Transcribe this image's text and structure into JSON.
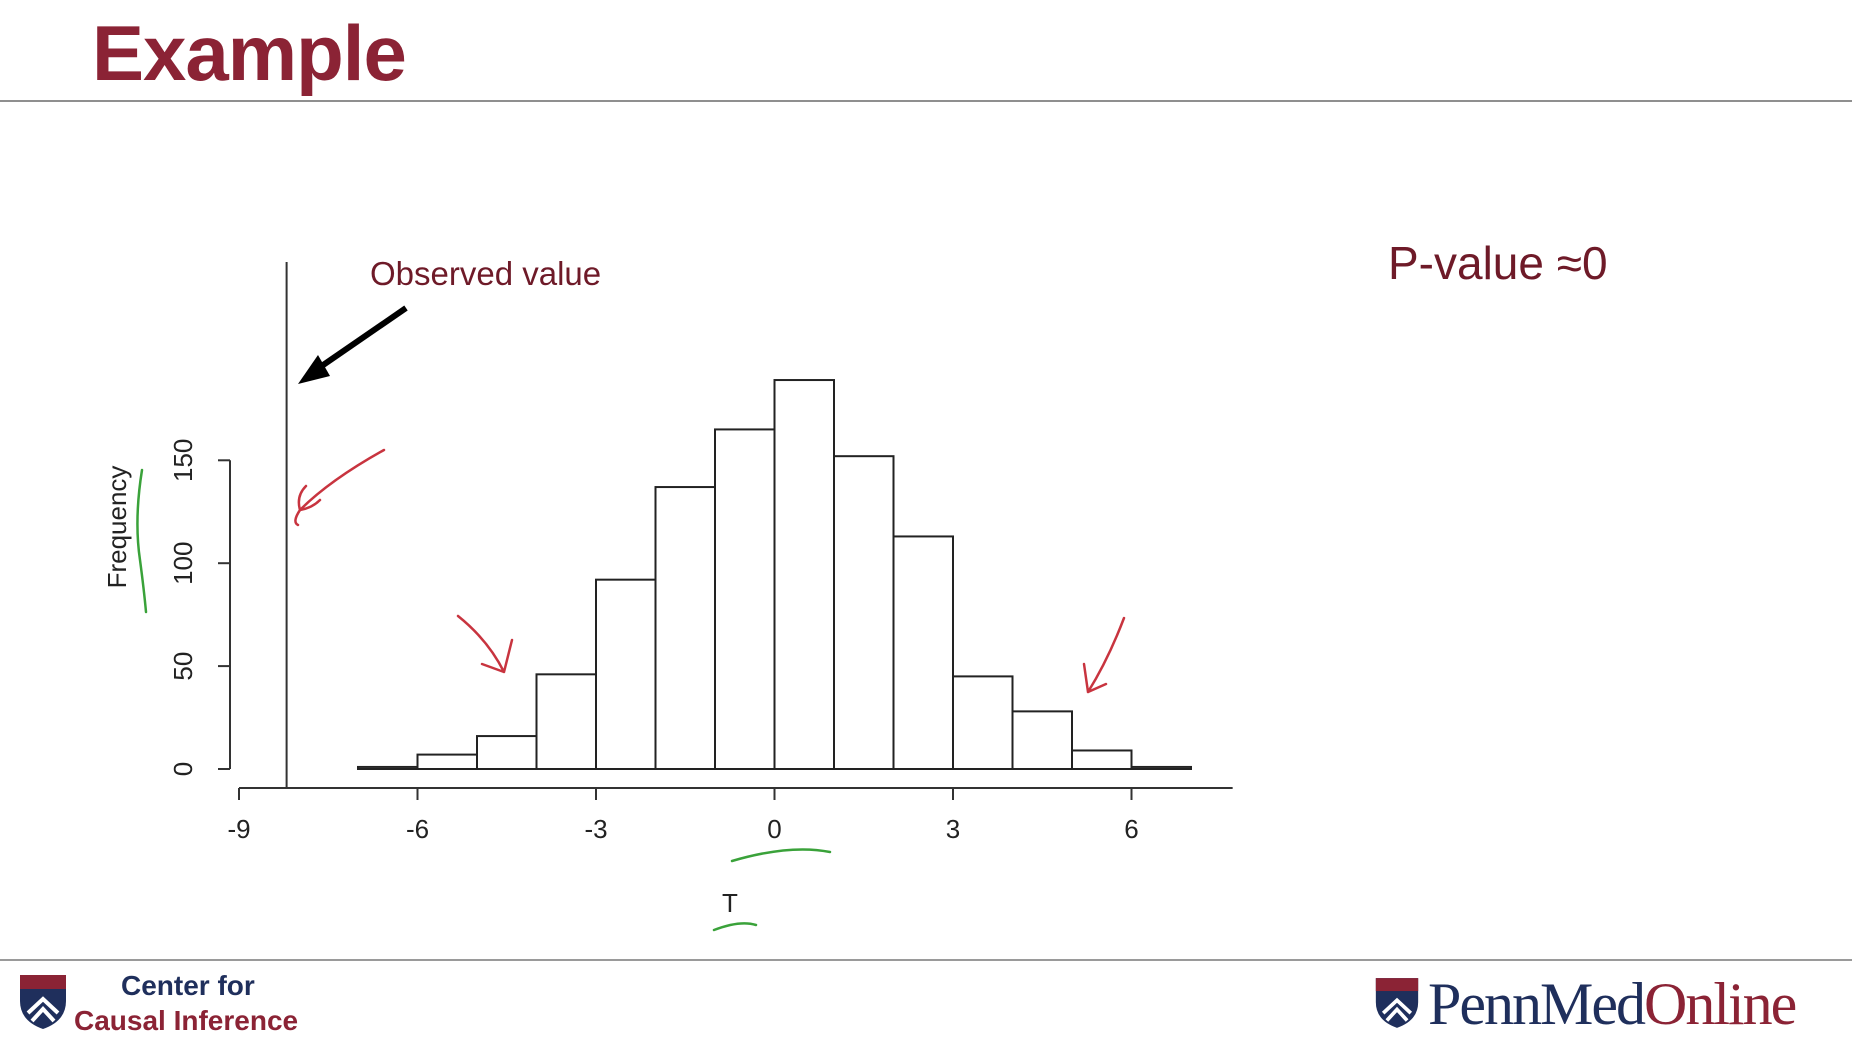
{
  "slide": {
    "title": "Example",
    "pvalue_text": "P-value ≈0"
  },
  "footer": {
    "cci_line1": "Center for",
    "cci_line2": "Causal Inference",
    "penn_part1": "PennMed",
    "penn_part2": "Online"
  },
  "colors": {
    "title": "#8b2335",
    "navy": "#1f2f5c",
    "annotation_red": "#c8343f",
    "annotation_green": "#3aa23a"
  },
  "chart_data": {
    "type": "bar",
    "subtype": "histogram",
    "xlabel": "T",
    "ylabel": "Frequency",
    "bin_edges": [
      -7,
      -6,
      -5,
      -4,
      -3,
      -2,
      -1,
      0,
      1,
      2,
      3,
      4,
      5,
      6,
      7
    ],
    "frequencies": [
      1,
      7,
      16,
      46,
      92,
      137,
      165,
      189,
      152,
      113,
      45,
      28,
      9,
      1
    ],
    "x_ticks": [
      -9,
      -6,
      -3,
      0,
      3,
      6
    ],
    "x_tick_labels": [
      "-9",
      "-6",
      "-3",
      "0",
      "3",
      "6"
    ],
    "y_ticks": [
      0,
      50,
      100,
      150
    ],
    "y_tick_labels": [
      "0",
      "50",
      "100",
      "150"
    ],
    "xlim": [
      -9,
      7.7
    ],
    "ylim": [
      0,
      189
    ],
    "observed_value": -8.2,
    "annotation": "Observed value",
    "grid": false
  }
}
